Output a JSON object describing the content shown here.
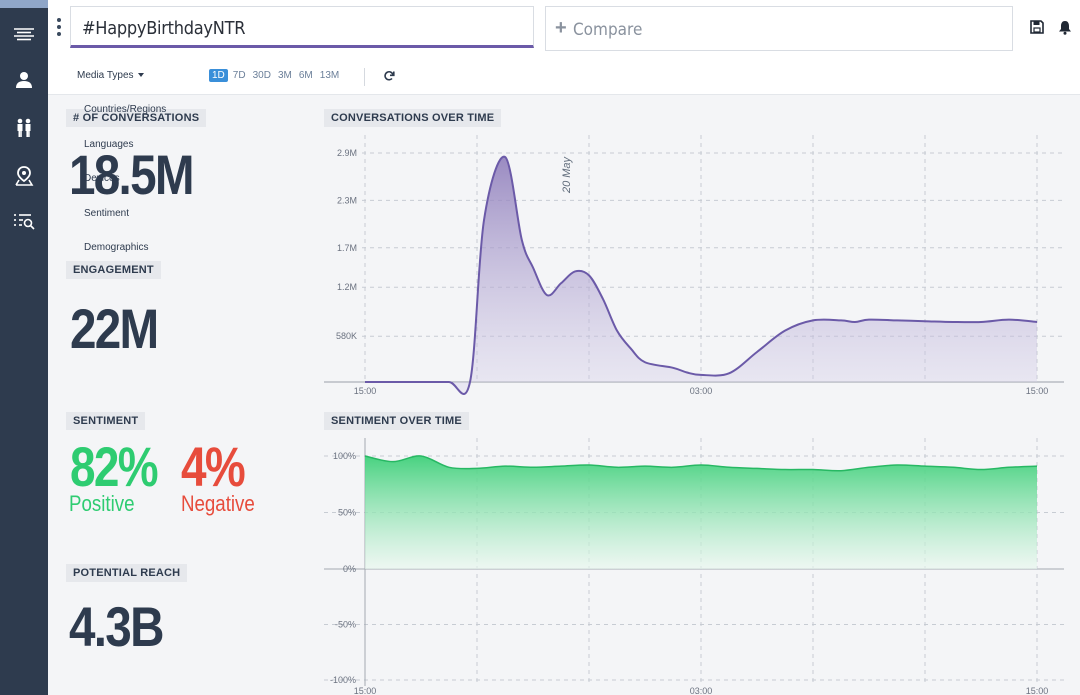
{
  "header": {
    "search_value": "#HappyBirthdayNTR",
    "compare_label": "Compare"
  },
  "sidebar": {
    "items": [
      {
        "icon": "waves-icon"
      },
      {
        "icon": "user-icon"
      },
      {
        "icon": "people-icon"
      },
      {
        "icon": "location-pin-icon"
      },
      {
        "icon": "list-search-icon"
      }
    ]
  },
  "toolbar": {
    "media_types_label": "Media Types",
    "ranges": [
      "1D",
      "7D",
      "30D",
      "3M",
      "6M",
      "13M"
    ],
    "active_range": "1D"
  },
  "dropdown": {
    "items": [
      "Countries/Regions",
      "Languages",
      "Devices",
      "Sentiment",
      "Demographics"
    ]
  },
  "metrics": {
    "conversations_label": "# OF CONVERSATIONS",
    "conversations_value": "18.5M",
    "engagement_label": "ENGAGEMENT",
    "engagement_value": "22M",
    "sentiment_label": "SENTIMENT",
    "positive_value": "82%",
    "positive_label": "Positive",
    "negative_value": "4%",
    "negative_label": "Negative",
    "reach_label": "POTENTIAL REACH",
    "reach_value": "4.3B"
  },
  "colors": {
    "accent": "#6b5aa8",
    "positive": "#2ecc71",
    "negative": "#e74c3c",
    "text_dark": "#2e3b4e"
  },
  "chart_data": [
    {
      "type": "area",
      "title": "CONVERSATIONS OVER TIME",
      "x_ticks": [
        "15:00",
        "03:00",
        "15:00"
      ],
      "y_ticks": [
        "580K",
        "1.2M",
        "1.7M",
        "2.3M",
        "2.9M"
      ],
      "y_tick_values": [
        580000,
        1200000,
        1700000,
        2300000,
        2900000
      ],
      "ylim": [
        0,
        2900000
      ],
      "annotation": "20 May",
      "annotation_hour": 7,
      "x_hours": [
        0,
        1,
        2,
        3,
        3.75,
        4.25,
        5,
        5.6,
        6,
        6.5,
        7,
        7.5,
        8,
        8.5,
        9,
        9.5,
        10,
        11,
        11.5,
        12,
        13,
        14,
        15,
        16,
        17,
        17.5,
        18,
        19,
        20,
        21,
        22,
        23,
        24
      ],
      "values": [
        0,
        0,
        0,
        0,
        0,
        2050000,
        2850000,
        1800000,
        1450000,
        1100000,
        1250000,
        1400000,
        1350000,
        1050000,
        650000,
        420000,
        250000,
        180000,
        120000,
        90000,
        110000,
        380000,
        650000,
        780000,
        780000,
        760000,
        790000,
        780000,
        770000,
        760000,
        760000,
        790000,
        760000
      ],
      "color": "#6b5aa8",
      "grid": true
    },
    {
      "type": "area",
      "title": "SENTIMENT OVER TIME",
      "x_ticks": [
        "15:00",
        "03:00",
        "15:00"
      ],
      "y_ticks": [
        "100%",
        "50%",
        "0%",
        "-50%",
        "-100%"
      ],
      "y_tick_values": [
        100,
        50,
        0,
        -50,
        -100
      ],
      "ylim": [
        -100,
        100
      ],
      "x_hours": [
        0,
        1,
        2,
        3,
        4,
        5,
        6,
        7,
        8,
        9,
        10,
        11,
        12,
        13,
        14,
        15,
        16,
        17,
        18,
        19,
        20,
        21,
        22,
        23,
        24
      ],
      "values": [
        100,
        95,
        100,
        90,
        89,
        91,
        90,
        91,
        92,
        90,
        91,
        90,
        92,
        90,
        89,
        88,
        88,
        87,
        90,
        92,
        91,
        90,
        88,
        90,
        91
      ],
      "color": "#2ecc71",
      "grid": true
    }
  ]
}
